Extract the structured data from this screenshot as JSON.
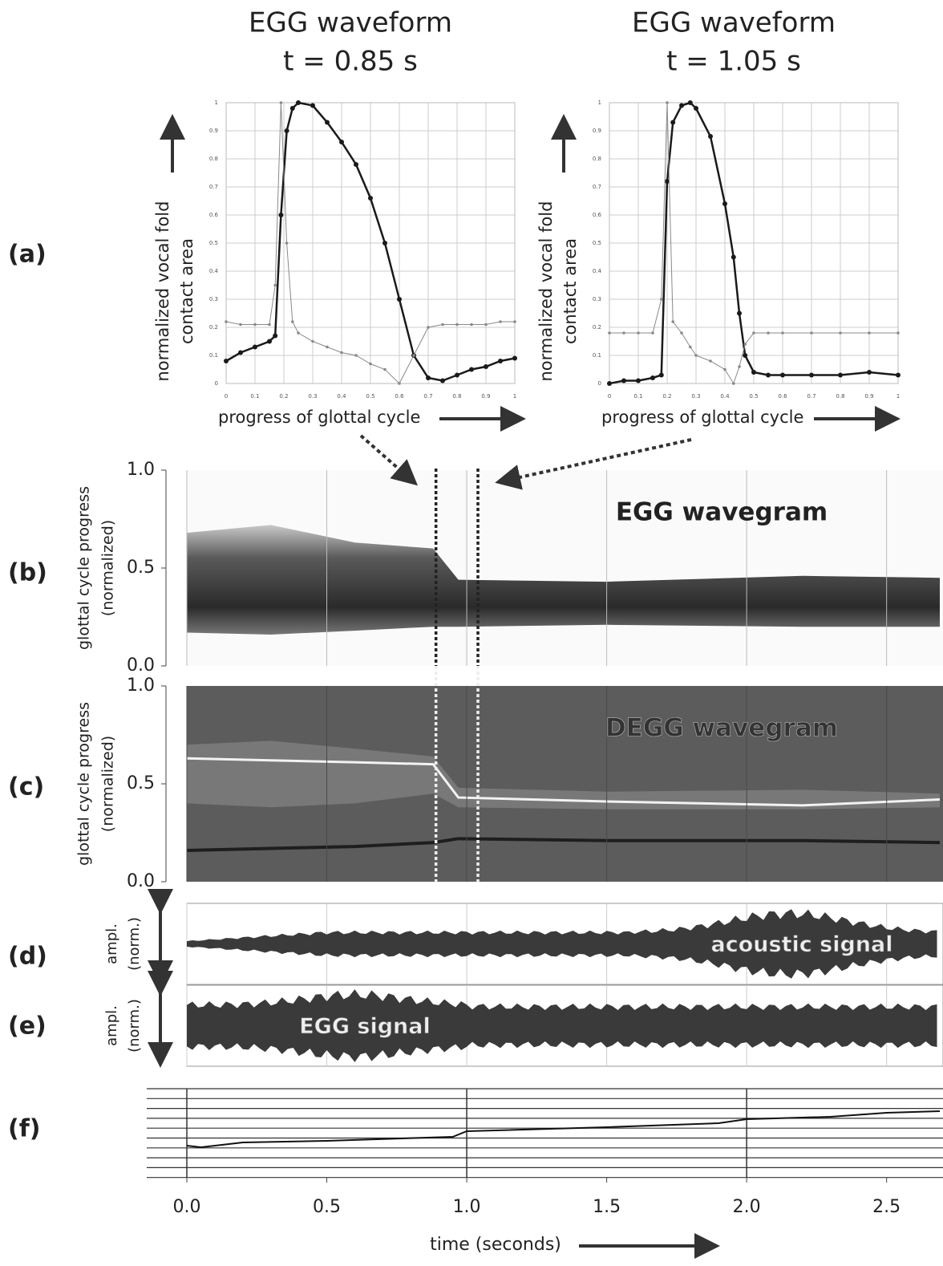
{
  "panel_labels": [
    "(a)",
    "(b)",
    "(c)",
    "(d)",
    "(e)",
    "(f)"
  ],
  "chart_data": [
    {
      "type": "line",
      "title": "EGG waveform",
      "subtitle": "t = 0.85 s",
      "ylabel": [
        "normalized vocal fold",
        "contact area"
      ],
      "xlabel": "progress of glottal cycle",
      "xlim": [
        0,
        1
      ],
      "ylim": [
        0,
        1
      ],
      "xticks": [
        0,
        0.1,
        0.2,
        0.3,
        0.4,
        0.5,
        0.6,
        0.7,
        0.8,
        0.9,
        1
      ],
      "yticks": [
        0,
        0.1,
        0.2,
        0.3,
        0.4,
        0.5,
        0.6,
        0.7,
        0.8,
        0.9,
        1
      ],
      "grid": true,
      "x": [
        0,
        0.05,
        0.1,
        0.15,
        0.17,
        0.19,
        0.21,
        0.23,
        0.25,
        0.3,
        0.35,
        0.4,
        0.45,
        0.5,
        0.55,
        0.6,
        0.65,
        0.7,
        0.75,
        0.8,
        0.85,
        0.9,
        0.95,
        1
      ],
      "series": [
        {
          "color": "#1a1a1a",
          "values": [
            0.08,
            0.11,
            0.13,
            0.15,
            0.17,
            0.6,
            0.9,
            0.98,
            1.0,
            0.99,
            0.93,
            0.86,
            0.78,
            0.66,
            0.5,
            0.3,
            0.1,
            0.02,
            0.01,
            0.03,
            0.05,
            0.06,
            0.08,
            0.09
          ]
        },
        {
          "color": "#8a8a8a",
          "values": [
            0.22,
            0.21,
            0.21,
            0.21,
            0.35,
            1.0,
            0.5,
            0.22,
            0.18,
            0.15,
            0.13,
            0.11,
            0.1,
            0.07,
            0.05,
            0.0,
            0.1,
            0.2,
            0.21,
            0.21,
            0.21,
            0.21,
            0.22,
            0.22
          ]
        }
      ]
    },
    {
      "type": "line",
      "title": "EGG waveform",
      "subtitle": "t = 1.05 s",
      "ylabel": [
        "normalized vocal fold",
        "contact area"
      ],
      "xlabel": "progress of glottal cycle",
      "xlim": [
        0,
        1
      ],
      "ylim": [
        0,
        1
      ],
      "xticks": [
        0,
        0.1,
        0.2,
        0.3,
        0.4,
        0.5,
        0.6,
        0.7,
        0.8,
        0.9,
        1
      ],
      "yticks": [
        0,
        0.1,
        0.2,
        0.3,
        0.4,
        0.5,
        0.6,
        0.7,
        0.8,
        0.9,
        1
      ],
      "grid": true,
      "x": [
        0,
        0.05,
        0.1,
        0.15,
        0.18,
        0.2,
        0.22,
        0.25,
        0.28,
        0.3,
        0.35,
        0.4,
        0.43,
        0.45,
        0.47,
        0.5,
        0.55,
        0.6,
        0.7,
        0.8,
        0.9,
        1
      ],
      "series": [
        {
          "color": "#1a1a1a",
          "values": [
            0.0,
            0.01,
            0.01,
            0.02,
            0.03,
            0.72,
            0.93,
            0.99,
            1.0,
            0.98,
            0.88,
            0.64,
            0.45,
            0.25,
            0.1,
            0.04,
            0.03,
            0.03,
            0.03,
            0.03,
            0.04,
            0.03
          ]
        },
        {
          "color": "#8a8a8a",
          "values": [
            0.18,
            0.18,
            0.18,
            0.18,
            0.3,
            1.0,
            0.22,
            0.18,
            0.13,
            0.1,
            0.08,
            0.05,
            0.0,
            0.06,
            0.14,
            0.18,
            0.18,
            0.18,
            0.18,
            0.18,
            0.18,
            0.18
          ]
        }
      ]
    },
    {
      "type": "wavegram",
      "label": "EGG wavegram",
      "ylabel": [
        "glottal cycle progress",
        "(normalized)"
      ],
      "ylim": [
        0,
        1
      ],
      "yticks": [
        {
          "value": 0,
          "label": "0.0"
        },
        {
          "value": 0.5,
          "label": "0.5"
        },
        {
          "value": 1,
          "label": "1.0"
        }
      ]
    },
    {
      "type": "wavegram",
      "label": "DEGG wavegram",
      "ylabel": [
        "glottal cycle progress",
        "(normalized)"
      ],
      "ylim": [
        0,
        1
      ],
      "yticks": [
        {
          "value": 0,
          "label": "0.0"
        },
        {
          "value": 0.5,
          "label": "0.5"
        },
        {
          "value": 1,
          "label": "1.0"
        }
      ]
    },
    {
      "type": "signal",
      "label": "acoustic signal",
      "ylabel": [
        "ampl.",
        "(norm.)"
      ]
    },
    {
      "type": "signal",
      "label": "EGG signal",
      "ylabel": [
        "ampl.",
        "(norm.)"
      ]
    },
    {
      "type": "staff",
      "xlabel": "time (seconds)",
      "xlim": [
        0,
        2.69
      ],
      "xticks": [
        {
          "value": 0,
          "label": "0.0"
        },
        {
          "value": 0.5,
          "label": "0.5"
        },
        {
          "value": 1,
          "label": "1.0"
        },
        {
          "value": 1.5,
          "label": "1.5"
        },
        {
          "value": 2,
          "label": "2.0"
        },
        {
          "value": 2.5,
          "label": "2.5"
        }
      ]
    }
  ]
}
